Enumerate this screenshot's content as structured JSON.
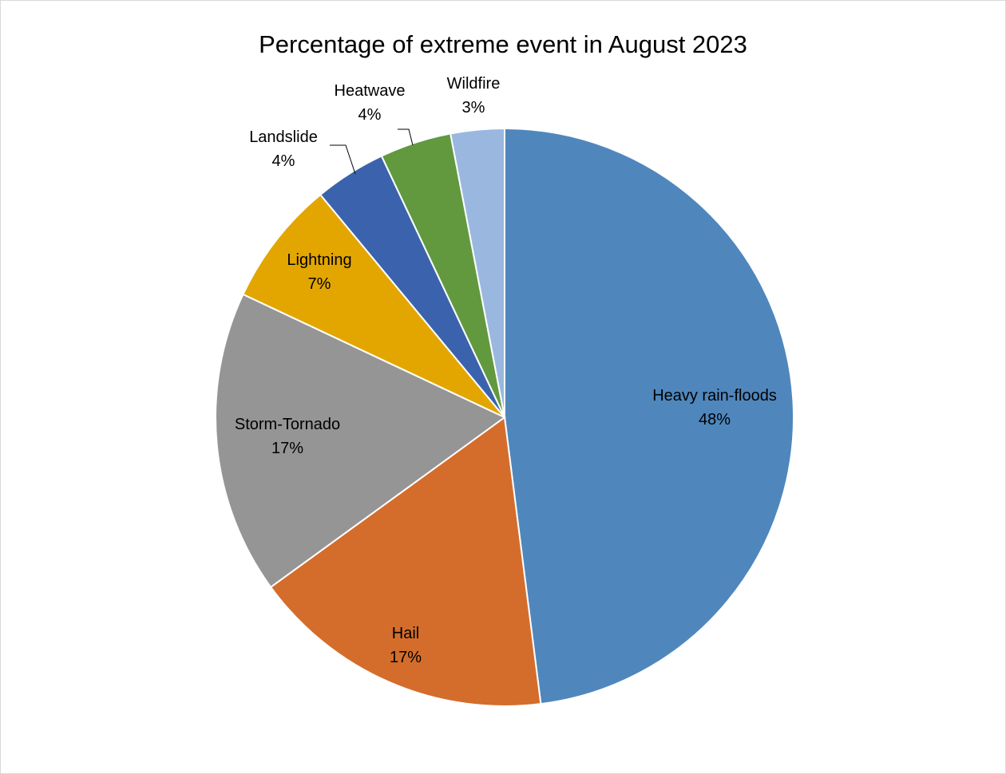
{
  "chart_data": {
    "type": "pie",
    "title": "Percentage of extreme event in August 2023",
    "labels": [
      "Heavy rain-floods",
      "Hail",
      "Storm-Tornado",
      "Lightning",
      "Landslide",
      "Heatwave",
      "Wildfire"
    ],
    "values": [
      48,
      17,
      17,
      7,
      4,
      4,
      3
    ],
    "value_labels": [
      "48%",
      "17%",
      "17%",
      "7%",
      "4%",
      "4%",
      "3%"
    ],
    "colors": [
      "#4f87bd",
      "#d46d2b",
      "#959595",
      "#e3a600",
      "#3b63ad",
      "#62993f",
      "#9ab8df"
    ],
    "start": "12 o'clock, clockwise",
    "legend": "none",
    "data_label_position": "inside for large slices, outside with leader lines for Landslide, Heatwave and Wildfire"
  }
}
